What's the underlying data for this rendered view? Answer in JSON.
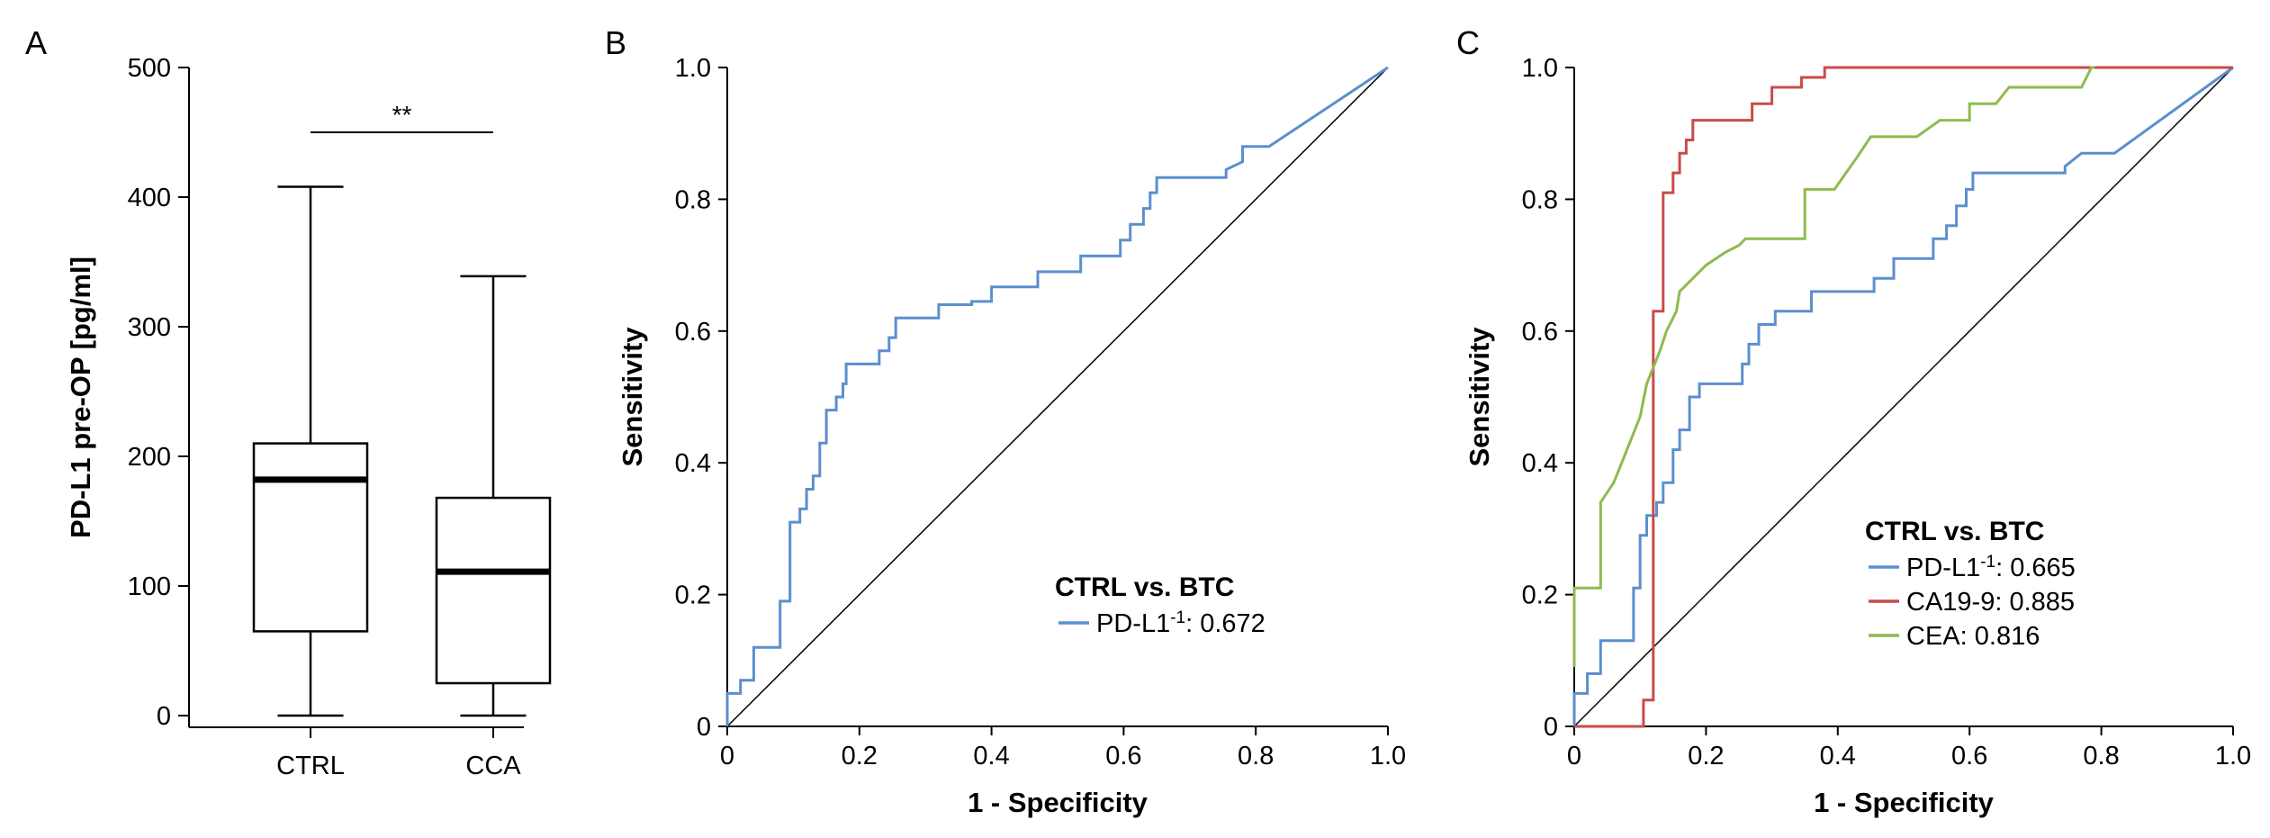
{
  "panels": {
    "a": "A",
    "b": "B",
    "c": "C"
  },
  "colors": {
    "pdl1": "#5b8fcf",
    "ca199": "#cc4a4a",
    "cea": "#8dbb4e",
    "axis": "#000000"
  },
  "chart_data": [
    {
      "type": "box",
      "ylabel": "PD-L1 pre-OP [pg/ml]",
      "ylim": [
        0,
        500
      ],
      "yticks": [
        0,
        100,
        200,
        300,
        400,
        500
      ],
      "categories": [
        "CTRL",
        "CCA"
      ],
      "boxes": [
        {
          "category": "CTRL",
          "whisker_low": 0,
          "q1": 65,
          "median": 182,
          "q3": 210,
          "whisker_high": 408
        },
        {
          "category": "CCA",
          "whisker_low": 0,
          "q1": 25,
          "median": 111,
          "q3": 168,
          "whisker_high": 339
        }
      ],
      "significance": {
        "label": "**",
        "y": 450
      }
    },
    {
      "type": "line",
      "xlabel": "1 - Specificity",
      "ylabel": "Sensitivity",
      "xlim": [
        0,
        1
      ],
      "ylim": [
        0,
        1
      ],
      "xticks": [
        "0",
        "0.2",
        "0.4",
        "0.6",
        "0.8",
        "1.0"
      ],
      "yticks": [
        "0",
        "0.2",
        "0.4",
        "0.6",
        "0.8",
        "1.0"
      ],
      "legend": {
        "title": "CTRL vs. BTC",
        "position": "bottom-right",
        "entries": [
          {
            "name": "PD-L1",
            "sup": "-1",
            "value": ": 0.672"
          }
        ]
      },
      "reference_line": [
        [
          0,
          0
        ],
        [
          1,
          1
        ]
      ],
      "series": [
        {
          "name": "PD-L1",
          "color": "#5b8fcf",
          "points": [
            [
              0,
              0
            ],
            [
              0,
              0.05
            ],
            [
              0.02,
              0.05
            ],
            [
              0.02,
              0.07
            ],
            [
              0.04,
              0.07
            ],
            [
              0.04,
              0.12
            ],
            [
              0.08,
              0.12
            ],
            [
              0.08,
              0.19
            ],
            [
              0.095,
              0.19
            ],
            [
              0.095,
              0.31
            ],
            [
              0.11,
              0.31
            ],
            [
              0.11,
              0.33
            ],
            [
              0.12,
              0.33
            ],
            [
              0.12,
              0.36
            ],
            [
              0.13,
              0.36
            ],
            [
              0.13,
              0.38
            ],
            [
              0.14,
              0.38
            ],
            [
              0.14,
              0.43
            ],
            [
              0.15,
              0.43
            ],
            [
              0.15,
              0.48
            ],
            [
              0.165,
              0.48
            ],
            [
              0.165,
              0.5
            ],
            [
              0.175,
              0.5
            ],
            [
              0.175,
              0.52
            ],
            [
              0.18,
              0.52
            ],
            [
              0.18,
              0.55
            ],
            [
              0.23,
              0.55
            ],
            [
              0.23,
              0.57
            ],
            [
              0.245,
              0.57
            ],
            [
              0.245,
              0.59
            ],
            [
              0.255,
              0.59
            ],
            [
              0.255,
              0.62
            ],
            [
              0.32,
              0.62
            ],
            [
              0.32,
              0.64
            ],
            [
              0.37,
              0.64
            ],
            [
              0.37,
              0.645
            ],
            [
              0.4,
              0.645
            ],
            [
              0.4,
              0.667
            ],
            [
              0.47,
              0.667
            ],
            [
              0.47,
              0.69
            ],
            [
              0.535,
              0.69
            ],
            [
              0.535,
              0.714
            ],
            [
              0.595,
              0.714
            ],
            [
              0.595,
              0.738
            ],
            [
              0.61,
              0.738
            ],
            [
              0.61,
              0.762
            ],
            [
              0.63,
              0.762
            ],
            [
              0.63,
              0.786
            ],
            [
              0.64,
              0.786
            ],
            [
              0.64,
              0.81
            ],
            [
              0.65,
              0.81
            ],
            [
              0.65,
              0.833
            ],
            [
              0.755,
              0.833
            ],
            [
              0.755,
              0.845
            ],
            [
              0.78,
              0.857
            ],
            [
              0.78,
              0.88
            ],
            [
              0.82,
              0.88
            ],
            [
              1,
              1
            ]
          ]
        }
      ]
    },
    {
      "type": "line",
      "xlabel": "1 - Specificity",
      "ylabel": "Sensitivity",
      "xlim": [
        0,
        1
      ],
      "ylim": [
        0,
        1
      ],
      "xticks": [
        "0",
        "0.2",
        "0.4",
        "0.6",
        "0.8",
        "1.0"
      ],
      "yticks": [
        "0",
        "0.2",
        "0.4",
        "0.6",
        "0.8",
        "1.0"
      ],
      "legend": {
        "title": "CTRL vs. BTC",
        "position": "bottom-right",
        "entries": [
          {
            "name": "PD-L1",
            "sup": "-1",
            "value": ": 0.665"
          },
          {
            "name": "CA19-9",
            "sup": "",
            "value": ": 0.885"
          },
          {
            "name": "CEA",
            "sup": "",
            "value": ": 0.816"
          }
        ]
      },
      "reference_line": [
        [
          0,
          0
        ],
        [
          1,
          1
        ]
      ],
      "series": [
        {
          "name": "PD-L1",
          "color": "#5b8fcf",
          "points": [
            [
              0,
              0
            ],
            [
              0,
              0.05
            ],
            [
              0.02,
              0.05
            ],
            [
              0.02,
              0.08
            ],
            [
              0.04,
              0.08
            ],
            [
              0.04,
              0.13
            ],
            [
              0.09,
              0.13
            ],
            [
              0.09,
              0.21
            ],
            [
              0.1,
              0.21
            ],
            [
              0.1,
              0.29
            ],
            [
              0.11,
              0.29
            ],
            [
              0.11,
              0.32
            ],
            [
              0.125,
              0.32
            ],
            [
              0.125,
              0.34
            ],
            [
              0.135,
              0.34
            ],
            [
              0.135,
              0.37
            ],
            [
              0.15,
              0.37
            ],
            [
              0.15,
              0.42
            ],
            [
              0.16,
              0.42
            ],
            [
              0.16,
              0.45
            ],
            [
              0.175,
              0.45
            ],
            [
              0.175,
              0.5
            ],
            [
              0.19,
              0.5
            ],
            [
              0.19,
              0.52
            ],
            [
              0.255,
              0.52
            ],
            [
              0.255,
              0.55
            ],
            [
              0.265,
              0.55
            ],
            [
              0.265,
              0.58
            ],
            [
              0.28,
              0.58
            ],
            [
              0.28,
              0.61
            ],
            [
              0.305,
              0.61
            ],
            [
              0.305,
              0.63
            ],
            [
              0.36,
              0.63
            ],
            [
              0.36,
              0.66
            ],
            [
              0.455,
              0.66
            ],
            [
              0.455,
              0.68
            ],
            [
              0.485,
              0.68
            ],
            [
              0.485,
              0.71
            ],
            [
              0.545,
              0.71
            ],
            [
              0.545,
              0.74
            ],
            [
              0.565,
              0.74
            ],
            [
              0.565,
              0.76
            ],
            [
              0.58,
              0.76
            ],
            [
              0.58,
              0.79
            ],
            [
              0.595,
              0.79
            ],
            [
              0.595,
              0.815
            ],
            [
              0.605,
              0.815
            ],
            [
              0.605,
              0.84
            ],
            [
              0.745,
              0.84
            ],
            [
              0.745,
              0.85
            ],
            [
              0.77,
              0.87
            ],
            [
              0.82,
              0.87
            ],
            [
              1,
              1
            ]
          ]
        },
        {
          "name": "CA19-9",
          "color": "#cc4a4a",
          "points": [
            [
              0,
              0
            ],
            [
              0.105,
              0
            ],
            [
              0.105,
              0.04
            ],
            [
              0.12,
              0.04
            ],
            [
              0.12,
              0.63
            ],
            [
              0.135,
              0.63
            ],
            [
              0.135,
              0.81
            ],
            [
              0.15,
              0.81
            ],
            [
              0.15,
              0.84
            ],
            [
              0.16,
              0.84
            ],
            [
              0.16,
              0.87
            ],
            [
              0.17,
              0.87
            ],
            [
              0.17,
              0.89
            ],
            [
              0.18,
              0.89
            ],
            [
              0.18,
              0.92
            ],
            [
              0.27,
              0.92
            ],
            [
              0.27,
              0.945
            ],
            [
              0.3,
              0.945
            ],
            [
              0.3,
              0.97
            ],
            [
              0.345,
              0.97
            ],
            [
              0.345,
              0.985
            ],
            [
              0.38,
              0.985
            ],
            [
              0.38,
              1
            ],
            [
              1,
              1
            ]
          ]
        },
        {
          "name": "CEA",
          "color": "#8dbb4e",
          "points": [
            [
              0,
              0.09
            ],
            [
              0,
              0.21
            ],
            [
              0.04,
              0.21
            ],
            [
              0.04,
              0.34
            ],
            [
              0.06,
              0.37
            ],
            [
              0.08,
              0.42
            ],
            [
              0.1,
              0.47
            ],
            [
              0.11,
              0.52
            ],
            [
              0.13,
              0.57
            ],
            [
              0.14,
              0.6
            ],
            [
              0.155,
              0.63
            ],
            [
              0.16,
              0.66
            ],
            [
              0.18,
              0.68
            ],
            [
              0.2,
              0.7
            ],
            [
              0.23,
              0.72
            ],
            [
              0.25,
              0.73
            ],
            [
              0.26,
              0.74
            ],
            [
              0.35,
              0.74
            ],
            [
              0.35,
              0.815
            ],
            [
              0.395,
              0.815
            ],
            [
              0.43,
              0.865
            ],
            [
              0.45,
              0.895
            ],
            [
              0.52,
              0.895
            ],
            [
              0.555,
              0.92
            ],
            [
              0.6,
              0.92
            ],
            [
              0.6,
              0.945
            ],
            [
              0.64,
              0.945
            ],
            [
              0.66,
              0.97
            ],
            [
              0.77,
              0.97
            ],
            [
              0.785,
              1
            ],
            [
              0.79,
              1
            ]
          ]
        }
      ]
    }
  ]
}
